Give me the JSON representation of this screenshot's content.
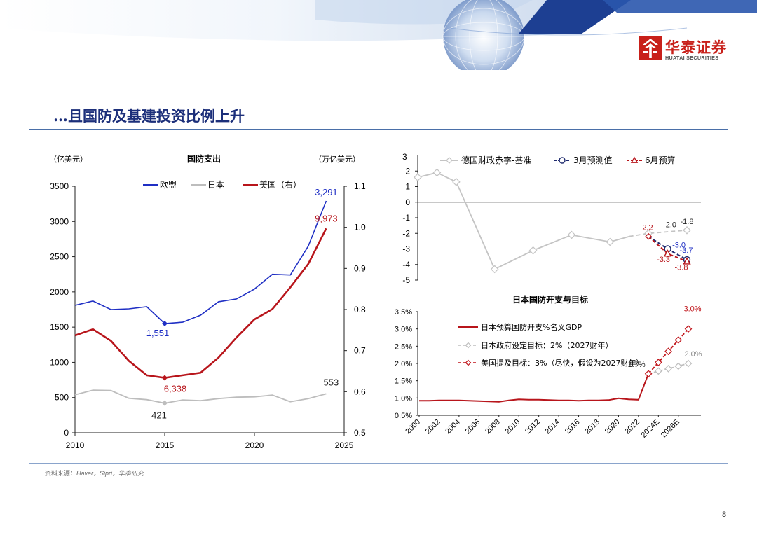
{
  "header": {
    "brand_cn": "华泰证券",
    "brand_en": "HUATAI SECURITIES",
    "brand_color": "#c8201a"
  },
  "page": {
    "title": "…且国防及基建投资比例上升",
    "source_label": "资料来源：",
    "source_text": "Haver，Sipri，华泰研究",
    "page_number": "8"
  },
  "colors": {
    "title": "#1c2f7a",
    "eu": "#1f2fc4",
    "japan": "#bdbdbd",
    "us": "#b8151b",
    "grey_series": "#c4c4c4",
    "navy_series": "#1e2a6e"
  },
  "chart_data": [
    {
      "id": "defense",
      "type": "line",
      "title": "国防支出",
      "ylabel": "（亿美元）",
      "y2label": "（万亿美元）",
      "xlim": [
        2010,
        2025
      ],
      "ylim": [
        0,
        3500
      ],
      "y2lim": [
        0.5,
        1.1
      ],
      "xticks": [
        "2010",
        "2015",
        "2020",
        "2025"
      ],
      "yticks": [
        "0",
        "500",
        "1000",
        "1500",
        "2000",
        "2500",
        "3000",
        "3500"
      ],
      "y2ticks": [
        "0.5",
        "0.6",
        "0.7",
        "0.8",
        "0.9",
        "1.0",
        "1.1"
      ],
      "legend_position": "top",
      "series": [
        {
          "name": "欧盟",
          "axis": "left",
          "color": "#1f2fc4",
          "x": [
            2010,
            2011,
            2012,
            2013,
            2014,
            2015,
            2016,
            2017,
            2018,
            2019,
            2020,
            2021,
            2022,
            2023,
            2024
          ],
          "values": [
            1810,
            1870,
            1750,
            1760,
            1790,
            1551,
            1570,
            1670,
            1860,
            1900,
            2040,
            2250,
            2240,
            2650,
            3291
          ]
        },
        {
          "name": "日本",
          "axis": "left",
          "color": "#bdbdbd",
          "x": [
            2010,
            2011,
            2012,
            2013,
            2014,
            2015,
            2016,
            2017,
            2018,
            2019,
            2020,
            2021,
            2022,
            2023,
            2024
          ],
          "values": [
            540,
            605,
            600,
            490,
            470,
            421,
            465,
            455,
            485,
            505,
            510,
            535,
            440,
            485,
            553
          ]
        },
        {
          "name": "美国（右）",
          "axis": "right",
          "color": "#b8151b",
          "x": [
            2010,
            2011,
            2012,
            2013,
            2014,
            2015,
            2016,
            2017,
            2018,
            2019,
            2020,
            2021,
            2022,
            2023,
            2024
          ],
          "values": [
            0.737,
            0.752,
            0.724,
            0.675,
            0.64,
            0.6338,
            0.64,
            0.646,
            0.683,
            0.732,
            0.776,
            0.801,
            0.854,
            0.911,
            0.9973
          ]
        }
      ],
      "labels": [
        {
          "text": "3,291",
          "series": 0,
          "x": 2024,
          "color": "#1f2fc4"
        },
        {
          "text": "1,551",
          "series": 0,
          "x": 2015,
          "color": "#1f2fc4"
        },
        {
          "text": "9,973",
          "series": 2,
          "x": 2024,
          "color": "#b8151b"
        },
        {
          "text": "6,338",
          "series": 2,
          "x": 2015,
          "color": "#b8151b"
        },
        {
          "text": "553",
          "series": 1,
          "x": 2024,
          "color": "#222222"
        },
        {
          "text": "421",
          "series": 1,
          "x": 2015,
          "color": "#222222"
        }
      ]
    },
    {
      "id": "germany",
      "type": "line",
      "ylabel_partial": "3",
      "ylim": [
        -5,
        3
      ],
      "yticks": [
        "-5",
        "-4",
        "-3",
        "-2",
        "-1",
        "0",
        "1",
        "2"
      ],
      "legend_position": "top",
      "series": [
        {
          "name": "德国财政赤字-基准",
          "color": "#c4c4c4",
          "marker": "diamond",
          "x": [
            2000,
            2002,
            2004,
            2008,
            2012,
            2016,
            2020,
            2022,
            2024,
            2028
          ],
          "values": [
            1.6,
            1.9,
            1.3,
            -4.3,
            -3.1,
            -2.1,
            -2.55,
            -2.2,
            -2.0,
            -1.8
          ]
        },
        {
          "name": "3月预测值",
          "color": "#1e2a6e",
          "marker": "circle",
          "x": [
            2024,
            2026,
            2028
          ],
          "values": [
            -2.2,
            -3.0,
            -3.7
          ]
        },
        {
          "name": "6月预算",
          "color": "#b8151b",
          "marker": "triangle",
          "x": [
            2024,
            2026,
            2028
          ],
          "values": [
            -2.2,
            -3.3,
            -3.8
          ]
        }
      ],
      "labels": [
        {
          "text": "-2.2",
          "x": 2024,
          "y": -2.2,
          "color": "#b8151b"
        },
        {
          "text": "-2.0",
          "x": 2026,
          "y": -2.0,
          "color": "#222222"
        },
        {
          "text": "-1.8",
          "x": 2028,
          "y": -1.8,
          "color": "#222222"
        },
        {
          "text": "-3.0",
          "x": 2026,
          "y": -3.0,
          "color": "#1f2fc4"
        },
        {
          "text": "-3.7",
          "x": 2028,
          "y": -3.7,
          "color": "#1f2fc4"
        },
        {
          "text": "-3.3",
          "x": 2026,
          "y": -3.3,
          "color": "#b8151b"
        },
        {
          "text": "-3.8",
          "x": 2028,
          "y": -3.8,
          "color": "#b8151b"
        }
      ]
    },
    {
      "id": "japan",
      "type": "line",
      "title": "日本国防开支与目标",
      "ylim": [
        0.5,
        3.5
      ],
      "yticks": [
        "0.5%",
        "1.0%",
        "1.5%",
        "2.0%",
        "2.5%",
        "3.0%",
        "3.5%"
      ],
      "xticks": [
        "2000",
        "2002",
        "2004",
        "2006",
        "2008",
        "2010",
        "2012",
        "2014",
        "2016",
        "2018",
        "2020",
        "2022",
        "2024E",
        "2026E"
      ],
      "xlim": [
        2000,
        2027
      ],
      "legend_position": "top-right",
      "series": [
        {
          "name": "日本预算国防开支%名义GDP",
          "color": "#b8151b",
          "x": [
            2000,
            2001,
            2002,
            2003,
            2004,
            2005,
            2006,
            2007,
            2008,
            2009,
            2010,
            2011,
            2012,
            2013,
            2014,
            2015,
            2016,
            2017,
            2018,
            2019,
            2020,
            2021,
            2022,
            2023
          ],
          "values": [
            0.92,
            0.92,
            0.93,
            0.93,
            0.93,
            0.92,
            0.91,
            0.9,
            0.89,
            0.93,
            0.96,
            0.95,
            0.95,
            0.94,
            0.93,
            0.93,
            0.92,
            0.93,
            0.93,
            0.94,
            0.99,
            0.96,
            0.95,
            1.7
          ]
        },
        {
          "name": "日本政府设定目标：2%（2027财年）",
          "color": "#bdbdbd",
          "marker": "diamond",
          "dash": true,
          "x": [
            2023,
            2024,
            2025,
            2026,
            2027
          ],
          "values": [
            1.7,
            1.78,
            1.85,
            1.92,
            2.0
          ]
        },
        {
          "name": "美国提及目标：3%（尽快，假设为2027财年）",
          "color": "#c0141a",
          "marker": "diamond",
          "dash": true,
          "x": [
            2023,
            2024,
            2025,
            2026,
            2027
          ],
          "values": [
            1.7,
            2.03,
            2.35,
            2.68,
            3.0
          ]
        }
      ],
      "labels": [
        {
          "text": "3.0%",
          "x": 2027,
          "y": 3.0,
          "color": "#c0141a"
        },
        {
          "text": "2.0%",
          "x": 2027,
          "y": 2.0,
          "color": "#8a8a8a"
        },
        {
          "text": "1.7%",
          "x": 2023,
          "y": 1.7,
          "color": "#222222"
        }
      ]
    }
  ]
}
